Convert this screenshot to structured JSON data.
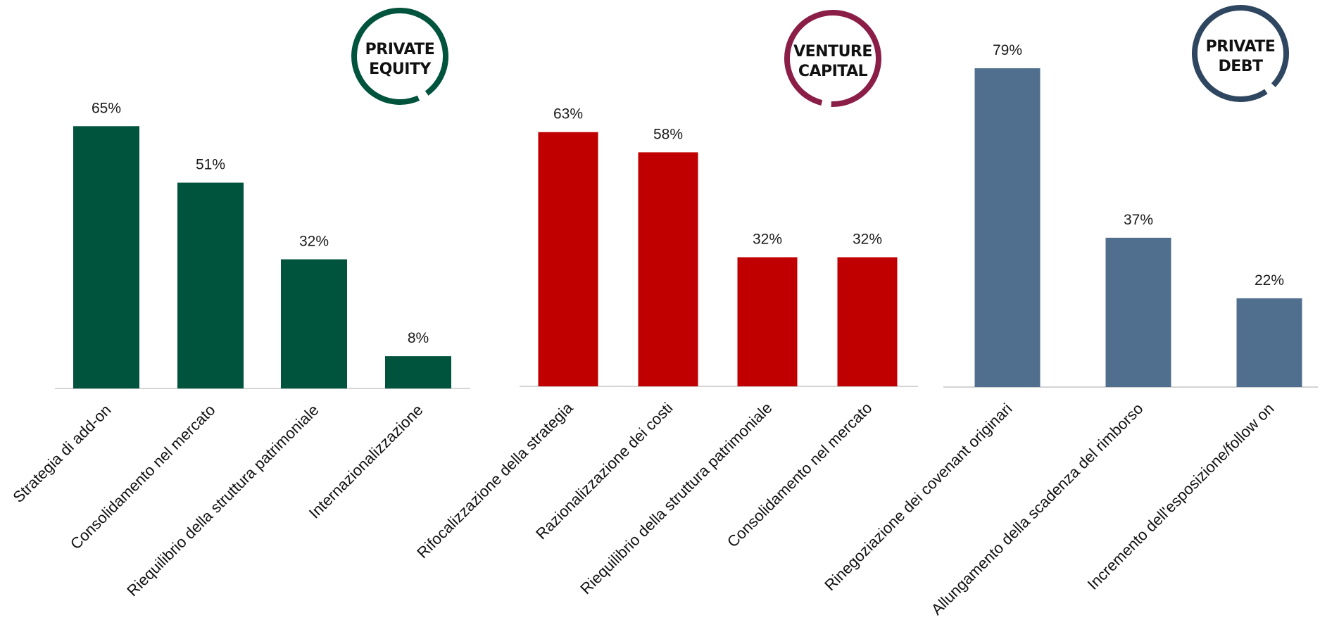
{
  "chart_data": [
    {
      "type": "bar",
      "badge": [
        "PRIVATE",
        "EQUITY"
      ],
      "color": "#00533C",
      "badge_color": "#00533C",
      "categories": [
        "Strategia di add-on",
        "Consolidamento nel mercato",
        "Riequilibrio della struttura patrimoniale",
        "Internazionalizzazione"
      ],
      "values": [
        65,
        51,
        32,
        8
      ],
      "value_labels": [
        "65%",
        "51%",
        "32%",
        "8%"
      ],
      "ylim": [
        0,
        80
      ]
    },
    {
      "type": "bar",
      "badge": [
        "VENTURE",
        "CAPITAL"
      ],
      "color": "#C00000",
      "badge_color": "#8B1E46",
      "categories": [
        "Rifocalizzazione della strategia",
        "Razionalizzazione dei costi",
        "Riequilibrio della struttura patrimoniale",
        "Consolidamento nel mercato"
      ],
      "values": [
        63,
        58,
        32,
        32
      ],
      "value_labels": [
        "63%",
        "58%",
        "32%",
        "32%"
      ],
      "ylim": [
        0,
        80
      ]
    },
    {
      "type": "bar",
      "badge": [
        "PRIVATE",
        "DEBT"
      ],
      "color": "#506E8D",
      "badge_color": "#2E4660",
      "categories": [
        "Rinegoziazione dei covenant originari",
        "Allungamento della scadenza del rimborso",
        "Incremento dell'esposizione/follow on"
      ],
      "values": [
        79,
        37,
        22
      ],
      "value_labels": [
        "79%",
        "37%",
        "22%"
      ],
      "ylim": [
        0,
        80
      ]
    }
  ]
}
